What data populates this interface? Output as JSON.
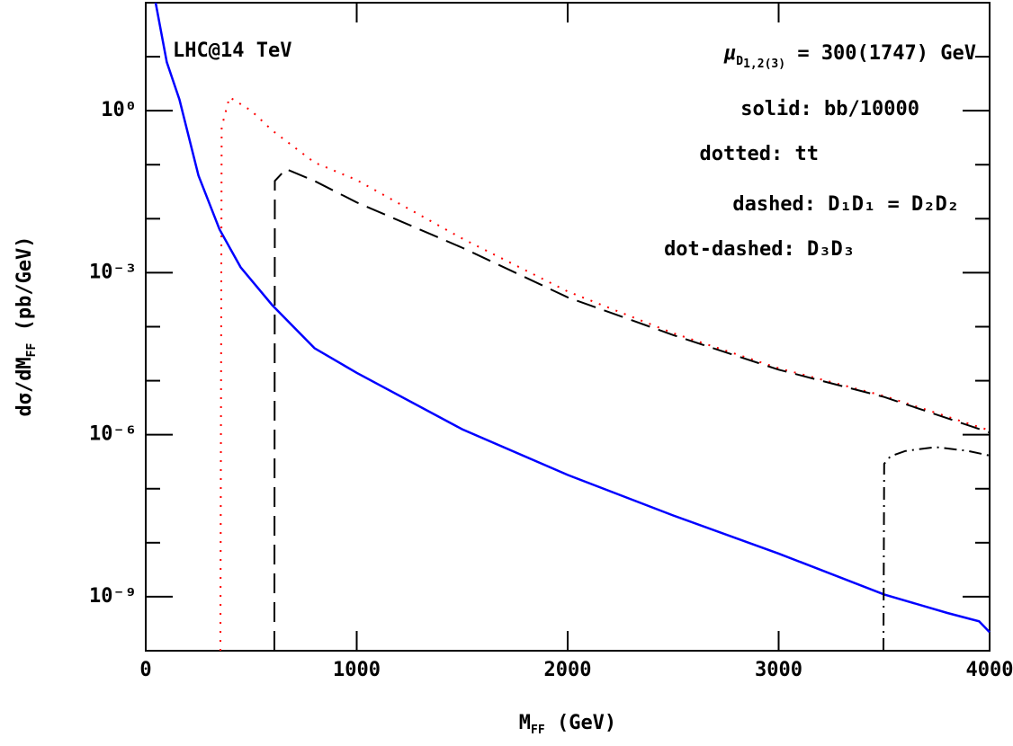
{
  "chart_data": {
    "type": "line",
    "xlabel": {
      "main": "M",
      "sub": "FF",
      "rest": " (GeV)"
    },
    "ylabel": {
      "main": "dσ/dM",
      "sub": "FF",
      "rest": " (pb/GeV)"
    },
    "annotations": [
      "LHC@14 TeV"
    ],
    "parameter": {
      "symbol": "μ",
      "sub": "D",
      "subsub": "1,2(3)",
      "rest": " = 300(1747) GeV"
    },
    "xlim": [
      0,
      4000
    ],
    "xticks": [
      0,
      1000,
      2000,
      3000,
      4000
    ],
    "ylog": true,
    "ylim": [
      1e-10,
      100
    ],
    "yticks": [
      {
        "value": 1,
        "label": "10⁰"
      },
      {
        "value": 0.001,
        "label": "10⁻³"
      },
      {
        "value": 1e-06,
        "label": "10⁻⁶"
      },
      {
        "value": 1e-09,
        "label": "10⁻⁹"
      }
    ],
    "yminor": [
      10,
      0.1,
      0.01,
      0.0001,
      1e-05,
      1e-07,
      1e-08,
      1e-10
    ],
    "series": [
      {
        "name": "bb/10000",
        "style": "solid:",
        "color": "#0000ff",
        "x": [
          47,
          100,
          160,
          250,
          350,
          450,
          600,
          800,
          1000,
          1500,
          2000,
          2500,
          3000,
          3500,
          3800,
          3950,
          4000
        ],
        "values": [
          100,
          7.9,
          1.6,
          0.063,
          0.0063,
          0.00126,
          0.00025,
          4e-05,
          1.4e-05,
          1.26e-06,
          1.8e-07,
          3.2e-08,
          6.3e-09,
          1.1e-09,
          5e-10,
          3.5e-10,
          2.2e-10
        ]
      },
      {
        "name": "tt",
        "style": "dotted:",
        "color": "#ff0000",
        "x": [
          354,
          360,
          397,
          500,
          600,
          800,
          1000,
          1500,
          2000,
          2500,
          3000,
          3500,
          4000
        ],
        "values": [
          1e-10,
          0.5,
          1.78,
          1.0,
          0.43,
          0.11,
          0.052,
          0.0043,
          0.00045,
          7.6e-05,
          1.7e-05,
          5.2e-06,
          1.2e-06
        ]
      },
      {
        "name": "D₁D₁ = D₂D₂",
        "style": "dashed:",
        "color": "#000000",
        "x": [
          610,
          612,
          665,
          800,
          1000,
          1500,
          2000,
          2500,
          3000,
          3500,
          4000
        ],
        "values": [
          1e-10,
          0.05,
          0.083,
          0.05,
          0.02,
          0.0029,
          0.00035,
          7e-05,
          1.6e-05,
          5e-06,
          1.1e-06
        ]
      },
      {
        "name": "D₃D₃",
        "style": "dot-dashed:",
        "color": "#000000",
        "x": [
          3497,
          3500,
          3530,
          3600,
          3744,
          3900,
          4000
        ],
        "values": [
          1e-10,
          2.9e-07,
          4e-07,
          5e-07,
          5.9e-07,
          5e-07,
          4.1e-07
        ]
      }
    ]
  }
}
